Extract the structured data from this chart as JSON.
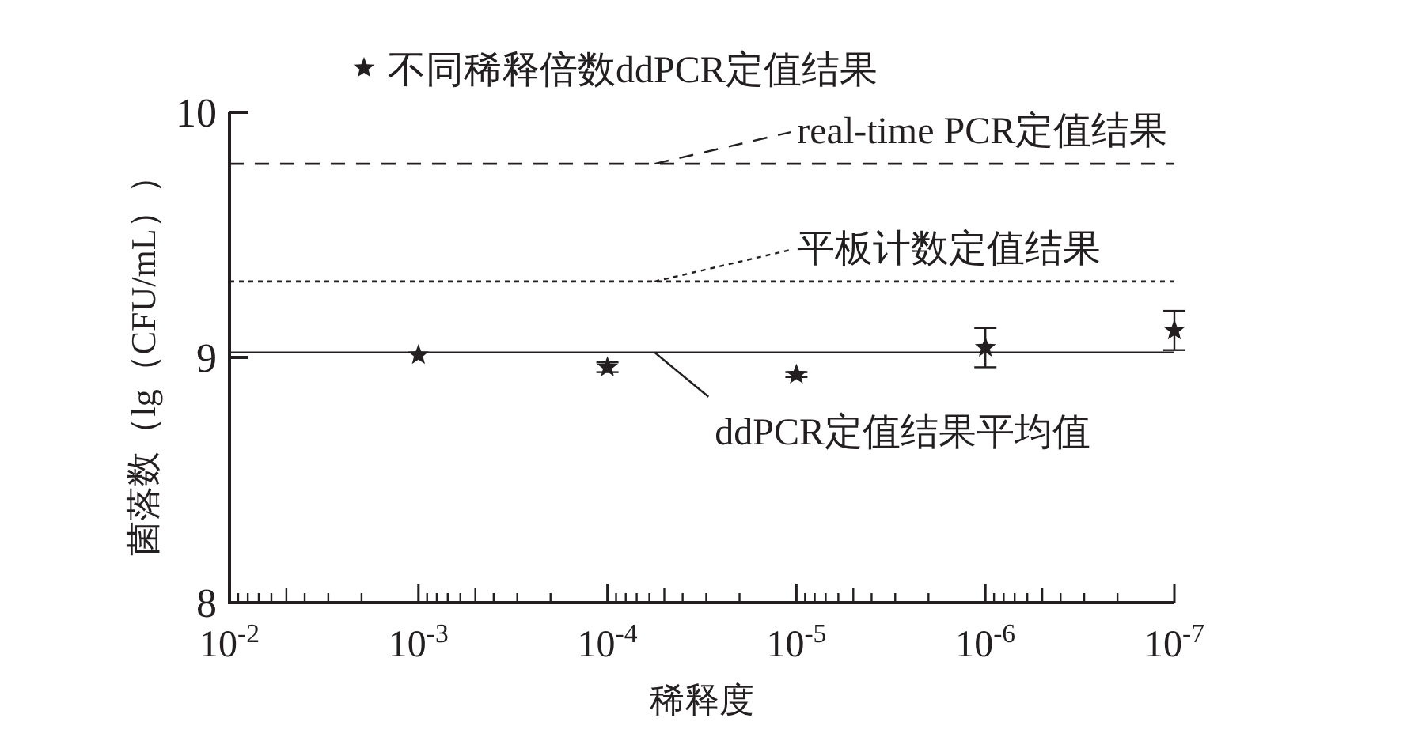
{
  "chart_data": {
    "type": "scatter",
    "xlabel": "稀释度",
    "ylabel": "菌落数（lg（CFU/mL））",
    "log": "x",
    "xlim": [
      0.01,
      1e-07
    ],
    "ylim": [
      8,
      10
    ],
    "xticks": [
      {
        "value": 0.01,
        "label": "10$^{-2}$"
      },
      {
        "value": 0.001,
        "label": "10$^{-3}$"
      },
      {
        "value": 0.0001,
        "label": "10$^{-4}$"
      },
      {
        "value": 1e-05,
        "label": "10$^{-5}$"
      },
      {
        "value": 1e-06,
        "label": "10$^{-6}$"
      },
      {
        "value": 1e-07,
        "label": "10$^{-7}$"
      }
    ],
    "yticks": [
      8,
      9,
      10
    ],
    "legend": "top",
    "marker": "star",
    "grid": false,
    "x": [
      0.001,
      0.0001,
      1e-05,
      1e-06,
      1e-07
    ],
    "series": [
      {
        "name": "不同稀释倍数ddPCR定值结果",
        "color": "#231f20",
        "values": [
          9.01,
          8.96,
          8.93,
          9.04,
          9.11
        ],
        "errors": [
          null,
          0.02,
          0.01,
          0.08,
          0.08
        ]
      }
    ],
    "ref_lines": [
      {
        "axis": "y",
        "value": 9.79,
        "label": "real-time PCR定值结果",
        "line_style": "dashed",
        "color": "#231f20"
      },
      {
        "axis": "y",
        "value": 9.31,
        "label": "平板计数定值结果",
        "line_style": "dotted",
        "color": "#231f20"
      },
      {
        "axis": "y",
        "value": 9.02,
        "label": "ddPCR定值结果平均值",
        "line_style": "solid",
        "color": "#231f20"
      }
    ]
  }
}
